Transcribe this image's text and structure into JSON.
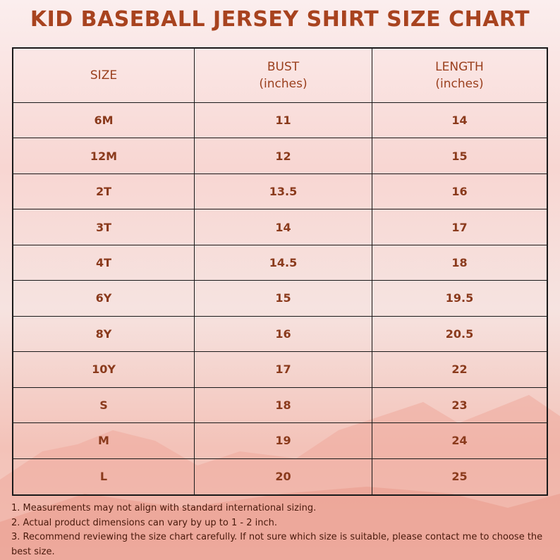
{
  "title": "KID BASEBALL JERSEY SHIRT SIZE CHART",
  "table": {
    "header": [
      {
        "label": "SIZE"
      },
      {
        "label": "BUST",
        "unit": "(inches)"
      },
      {
        "label": "LENGTH",
        "unit": "(inches)"
      }
    ],
    "rows": [
      [
        "6M",
        11,
        14
      ],
      [
        "12M",
        12,
        15
      ],
      [
        "2T",
        13.5,
        16
      ],
      [
        "3T",
        14,
        17
      ],
      [
        "4T",
        14.5,
        18
      ],
      [
        "6Y",
        15,
        19.5
      ],
      [
        "8Y",
        16,
        20.5
      ],
      [
        "10Y",
        17,
        22
      ],
      [
        "S",
        18,
        23
      ],
      [
        "M",
        19,
        24
      ],
      [
        "L",
        20,
        25
      ]
    ]
  },
  "notes": [
    "1. Measurements may not align with standard international sizing.",
    "2. Actual product dimensions can vary by up to 1 - 2 inch.",
    "3. Recommend reviewing the size chart carefully. If not sure which size is suitable, please contact me to choose the best size."
  ]
}
